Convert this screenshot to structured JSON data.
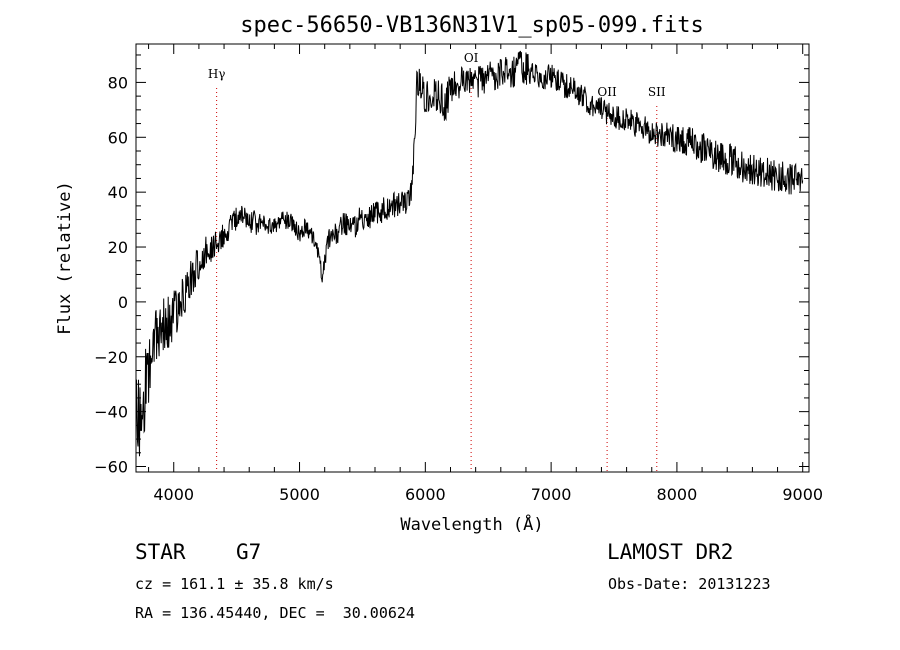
{
  "chart_data": {
    "type": "line",
    "title": "spec-56650-VB136N31V1_sp05-099.fits",
    "xlabel": "Wavelength (Å)",
    "ylabel": "Flux (relative)",
    "xlim": [
      3700,
      9050
    ],
    "ylim": [
      -62,
      94
    ],
    "xticks": [
      4000,
      5000,
      6000,
      7000,
      8000,
      9000
    ],
    "xtick_labels": [
      "4000",
      "5000",
      "6000",
      "7000",
      "8000",
      "9000"
    ],
    "yticks": [
      -60,
      -40,
      -20,
      0,
      20,
      40,
      60,
      80
    ],
    "ytick_labels": [
      "−60",
      "−40",
      "−20",
      "0",
      "20",
      "40",
      "60",
      "80"
    ],
    "x_minor_step": 200,
    "y_minor_step": 5,
    "lines": [
      {
        "name": "Hγ",
        "wavelength": 4341
      },
      {
        "name": "OI",
        "wavelength": 6364
      },
      {
        "name": "OII",
        "wavelength": 7445
      },
      {
        "name": "SII",
        "wavelength": 7840
      }
    ],
    "series": [
      {
        "name": "spectrum",
        "x": [
          3700,
          3740,
          3780,
          3820,
          3860,
          3900,
          3950,
          4000,
          4050,
          4100,
          4150,
          4200,
          4250,
          4300,
          4350,
          4400,
          4450,
          4500,
          4550,
          4600,
          4650,
          4700,
          4750,
          4800,
          4850,
          4900,
          4950,
          5000,
          5050,
          5100,
          5150,
          5180,
          5200,
          5220,
          5260,
          5300,
          5350,
          5400,
          5450,
          5500,
          5550,
          5600,
          5650,
          5700,
          5750,
          5800,
          5850,
          5880,
          5900,
          5920,
          5930,
          5950,
          5970,
          6000,
          6050,
          6100,
          6150,
          6200,
          6250,
          6300,
          6350,
          6400,
          6450,
          6500,
          6550,
          6600,
          6650,
          6700,
          6750,
          6800,
          6850,
          6900,
          6950,
          7000,
          7050,
          7100,
          7150,
          7200,
          7250,
          7300,
          7350,
          7400,
          7450,
          7500,
          7550,
          7600,
          7650,
          7700,
          7750,
          7800,
          7850,
          7900,
          7950,
          8000,
          8050,
          8100,
          8150,
          8200,
          8250,
          8300,
          8350,
          8400,
          8450,
          8500,
          8550,
          8600,
          8650,
          8700,
          8750,
          8800,
          8850,
          8900,
          8950,
          9000
        ],
        "y": [
          -40,
          -45,
          -30,
          -20,
          -15,
          -10,
          -8,
          -5,
          2,
          5,
          10,
          15,
          18,
          20,
          22,
          25,
          27,
          30,
          32,
          30,
          29,
          28,
          28,
          27,
          29,
          30,
          28,
          25,
          27,
          24,
          18,
          8,
          15,
          22,
          24,
          26,
          28,
          30,
          28,
          31,
          30,
          32,
          33,
          34,
          35,
          36,
          35,
          38,
          45,
          65,
          78,
          82,
          77,
          75,
          76,
          75,
          72,
          77,
          79,
          80,
          80,
          79,
          81,
          82,
          83,
          83,
          84,
          84,
          86,
          85,
          84,
          83,
          82,
          82,
          80,
          79,
          78,
          77,
          75,
          73,
          72,
          70,
          69,
          68,
          67,
          66,
          65,
          64,
          63,
          62,
          61,
          61,
          60,
          60,
          59,
          58,
          57,
          56,
          55,
          54,
          53,
          52,
          51,
          50,
          49,
          48,
          48,
          47,
          46,
          46,
          45,
          45,
          44,
          44
        ],
        "noise": [
          12,
          12,
          12,
          10,
          10,
          9,
          9,
          8,
          8,
          7,
          6,
          6,
          5,
          5,
          4,
          4,
          4,
          4,
          4,
          4,
          4,
          3,
          3,
          3,
          3,
          3,
          3,
          3,
          3,
          3,
          3,
          3,
          3,
          3,
          4,
          4,
          4,
          4,
          4,
          4,
          4,
          4,
          4,
          4,
          4,
          4,
          4,
          4,
          4,
          5,
          5,
          5,
          5,
          5,
          5,
          5,
          6,
          5,
          5,
          5,
          5,
          5,
          5,
          5,
          5,
          5,
          5,
          5,
          5,
          5,
          5,
          4,
          4,
          4,
          4,
          4,
          4,
          4,
          4,
          4,
          4,
          4,
          4,
          4,
          4,
          4,
          4,
          4,
          4,
          4,
          4,
          4,
          4,
          5,
          5,
          5,
          5,
          5,
          5,
          5,
          5,
          5,
          5,
          5,
          5,
          5,
          5,
          5,
          5,
          5,
          5,
          5,
          5,
          5
        ]
      }
    ]
  },
  "info": {
    "object_class": "STAR",
    "subclass": "G7",
    "survey": "LAMOST DR2",
    "cz_text": "cz = 161.1 ± 35.8 km/s",
    "obs_date_text": "Obs-Date: 20131223",
    "coords_text": "RA = 136.45440, DEC =  30.00624"
  }
}
